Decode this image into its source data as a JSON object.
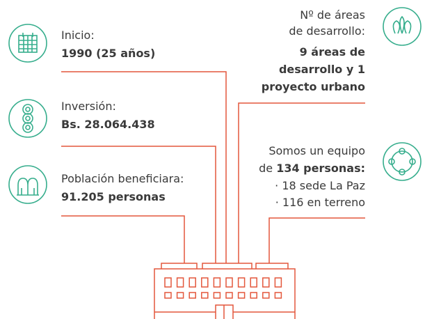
{
  "items": [
    {
      "label": "Inicio:",
      "value": "1990 (25 años)"
    },
    {
      "label": "Inversión:",
      "value": "Bs. 28.064.438"
    },
    {
      "label": "Población beneficiara:",
      "value": "91.205 personas"
    }
  ],
  "areas": {
    "label_lines": [
      "Nº de áreas",
      "de desarrollo:"
    ],
    "value_lines": [
      "9 áreas de",
      "desarrollo y 1",
      "proyecto urbano"
    ]
  },
  "team": {
    "line1": "Somos un equipo",
    "line2_prefix": "de",
    "line2_bold": "134 personas:",
    "details": [
      "· 18 sede La Paz",
      "· 116 en terreno"
    ]
  }
}
